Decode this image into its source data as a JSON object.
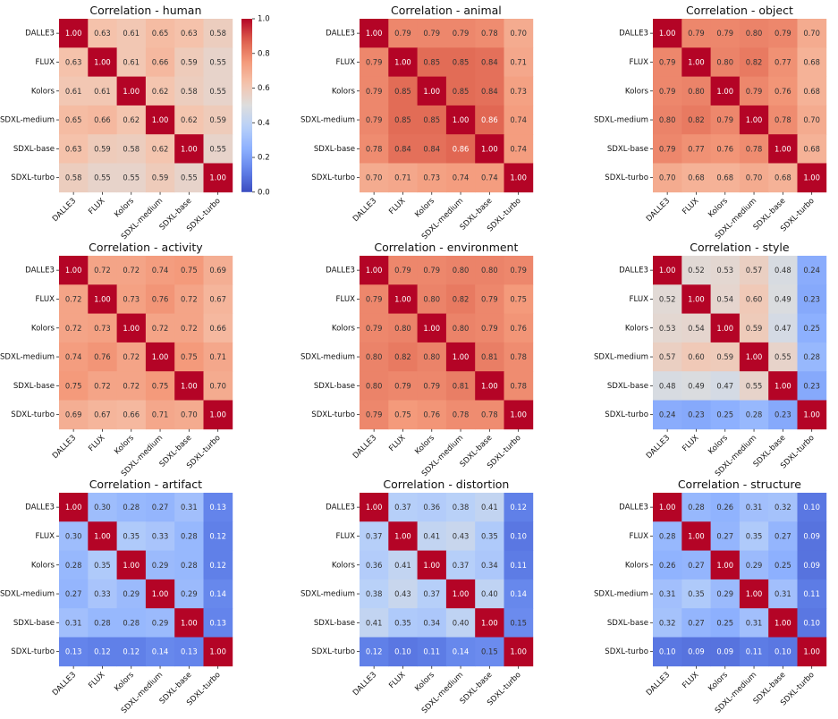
{
  "chart_data": [
    {
      "type": "heatmap",
      "title": "Correlation - human",
      "labels": [
        "DALLE3",
        "FLUX",
        "Kolors",
        "SDXL-medium",
        "SDXL-base",
        "SDXL-turbo"
      ],
      "matrix": [
        [
          1.0,
          0.63,
          0.61,
          0.65,
          0.63,
          0.58
        ],
        [
          0.63,
          1.0,
          0.61,
          0.66,
          0.59,
          0.55
        ],
        [
          0.61,
          0.61,
          1.0,
          0.62,
          0.58,
          0.55
        ],
        [
          0.65,
          0.66,
          0.62,
          1.0,
          0.62,
          0.59
        ],
        [
          0.63,
          0.59,
          0.58,
          0.62,
          1.0,
          0.55
        ],
        [
          0.58,
          0.55,
          0.55,
          0.59,
          0.55,
          1.0
        ]
      ]
    },
    {
      "type": "heatmap",
      "title": "Correlation - animal",
      "labels": [
        "DALLE3",
        "FLUX",
        "Kolors",
        "SDXL-medium",
        "SDXL-base",
        "SDXL-turbo"
      ],
      "matrix": [
        [
          1.0,
          0.79,
          0.79,
          0.79,
          0.78,
          0.7
        ],
        [
          0.79,
          1.0,
          0.85,
          0.85,
          0.84,
          0.71
        ],
        [
          0.79,
          0.85,
          1.0,
          0.85,
          0.84,
          0.73
        ],
        [
          0.79,
          0.85,
          0.85,
          1.0,
          0.86,
          0.74
        ],
        [
          0.78,
          0.84,
          0.84,
          0.86,
          1.0,
          0.74
        ],
        [
          0.7,
          0.71,
          0.73,
          0.74,
          0.74,
          1.0
        ]
      ]
    },
    {
      "type": "heatmap",
      "title": "Correlation - object",
      "labels": [
        "DALLE3",
        "FLUX",
        "Kolors",
        "SDXL-medium",
        "SDXL-base",
        "SDXL-turbo"
      ],
      "matrix": [
        [
          1.0,
          0.79,
          0.79,
          0.8,
          0.79,
          0.7
        ],
        [
          0.79,
          1.0,
          0.8,
          0.82,
          0.77,
          0.68
        ],
        [
          0.79,
          0.8,
          1.0,
          0.79,
          0.76,
          0.68
        ],
        [
          0.8,
          0.82,
          0.79,
          1.0,
          0.78,
          0.7
        ],
        [
          0.79,
          0.77,
          0.76,
          0.78,
          1.0,
          0.68
        ],
        [
          0.7,
          0.68,
          0.68,
          0.7,
          0.68,
          1.0
        ]
      ]
    },
    {
      "type": "heatmap",
      "title": "Correlation - activity",
      "labels": [
        "DALLE3",
        "FLUX",
        "Kolors",
        "SDXL-medium",
        "SDXL-base",
        "SDXL-turbo"
      ],
      "matrix": [
        [
          1.0,
          0.72,
          0.72,
          0.74,
          0.75,
          0.69
        ],
        [
          0.72,
          1.0,
          0.73,
          0.76,
          0.72,
          0.67
        ],
        [
          0.72,
          0.73,
          1.0,
          0.72,
          0.72,
          0.66
        ],
        [
          0.74,
          0.76,
          0.72,
          1.0,
          0.75,
          0.71
        ],
        [
          0.75,
          0.72,
          0.72,
          0.75,
          1.0,
          0.7
        ],
        [
          0.69,
          0.67,
          0.66,
          0.71,
          0.7,
          1.0
        ]
      ]
    },
    {
      "type": "heatmap",
      "title": "Correlation - environment",
      "labels": [
        "DALLE3",
        "FLUX",
        "Kolors",
        "SDXL-medium",
        "SDXL-base",
        "SDXL-turbo"
      ],
      "matrix": [
        [
          1.0,
          0.79,
          0.79,
          0.8,
          0.8,
          0.79
        ],
        [
          0.79,
          1.0,
          0.8,
          0.82,
          0.79,
          0.75
        ],
        [
          0.79,
          0.8,
          1.0,
          0.8,
          0.79,
          0.76
        ],
        [
          0.8,
          0.82,
          0.8,
          1.0,
          0.81,
          0.78
        ],
        [
          0.8,
          0.79,
          0.79,
          0.81,
          1.0,
          0.78
        ],
        [
          0.79,
          0.75,
          0.76,
          0.78,
          0.78,
          1.0
        ]
      ]
    },
    {
      "type": "heatmap",
      "title": "Correlation - style",
      "labels": [
        "DALLE3",
        "FLUX",
        "Kolors",
        "SDXL-medium",
        "SDXL-base",
        "SDXL-turbo"
      ],
      "matrix": [
        [
          1.0,
          0.52,
          0.53,
          0.57,
          0.48,
          0.24
        ],
        [
          0.52,
          1.0,
          0.54,
          0.6,
          0.49,
          0.23
        ],
        [
          0.53,
          0.54,
          1.0,
          0.59,
          0.47,
          0.25
        ],
        [
          0.57,
          0.6,
          0.59,
          1.0,
          0.55,
          0.28
        ],
        [
          0.48,
          0.49,
          0.47,
          0.55,
          1.0,
          0.23
        ],
        [
          0.24,
          0.23,
          0.25,
          0.28,
          0.23,
          1.0
        ]
      ]
    },
    {
      "type": "heatmap",
      "title": "Correlation - artifact",
      "labels": [
        "DALLE3",
        "FLUX",
        "Kolors",
        "SDXL-medium",
        "SDXL-base",
        "SDXL-turbo"
      ],
      "matrix": [
        [
          1.0,
          0.3,
          0.28,
          0.27,
          0.31,
          0.13
        ],
        [
          0.3,
          1.0,
          0.35,
          0.33,
          0.28,
          0.12
        ],
        [
          0.28,
          0.35,
          1.0,
          0.29,
          0.28,
          0.12
        ],
        [
          0.27,
          0.33,
          0.29,
          1.0,
          0.29,
          0.14
        ],
        [
          0.31,
          0.28,
          0.28,
          0.29,
          1.0,
          0.13
        ],
        [
          0.13,
          0.12,
          0.12,
          0.14,
          0.13,
          1.0
        ]
      ]
    },
    {
      "type": "heatmap",
      "title": "Correlation - distortion",
      "labels": [
        "DALLE3",
        "FLUX",
        "Kolors",
        "SDXL-medium",
        "SDXL-base",
        "SDXL-turbo"
      ],
      "matrix": [
        [
          1.0,
          0.37,
          0.36,
          0.38,
          0.41,
          0.12
        ],
        [
          0.37,
          1.0,
          0.41,
          0.43,
          0.35,
          0.1
        ],
        [
          0.36,
          0.41,
          1.0,
          0.37,
          0.34,
          0.11
        ],
        [
          0.38,
          0.43,
          0.37,
          1.0,
          0.4,
          0.14
        ],
        [
          0.41,
          0.35,
          0.34,
          0.4,
          1.0,
          0.15
        ],
        [
          0.12,
          0.1,
          0.11,
          0.14,
          0.15,
          1.0
        ]
      ]
    },
    {
      "type": "heatmap",
      "title": "Correlation - structure",
      "labels": [
        "DALLE3",
        "FLUX",
        "Kolors",
        "SDXL-medium",
        "SDXL-base",
        "SDXL-turbo"
      ],
      "matrix": [
        [
          1.0,
          0.28,
          0.26,
          0.31,
          0.32,
          0.1
        ],
        [
          0.28,
          1.0,
          0.27,
          0.35,
          0.27,
          0.09
        ],
        [
          0.26,
          0.27,
          1.0,
          0.29,
          0.25,
          0.09
        ],
        [
          0.31,
          0.35,
          0.29,
          1.0,
          0.31,
          0.11
        ],
        [
          0.32,
          0.27,
          0.25,
          0.31,
          1.0,
          0.1
        ],
        [
          0.1,
          0.09,
          0.09,
          0.11,
          0.1,
          1.0
        ]
      ]
    }
  ],
  "colorbar": {
    "colormap": "coolwarm",
    "range": [
      0.0,
      1.0
    ],
    "ticks": [
      "0.0",
      "0.2",
      "0.4",
      "0.6",
      "0.8",
      "1.0"
    ]
  }
}
